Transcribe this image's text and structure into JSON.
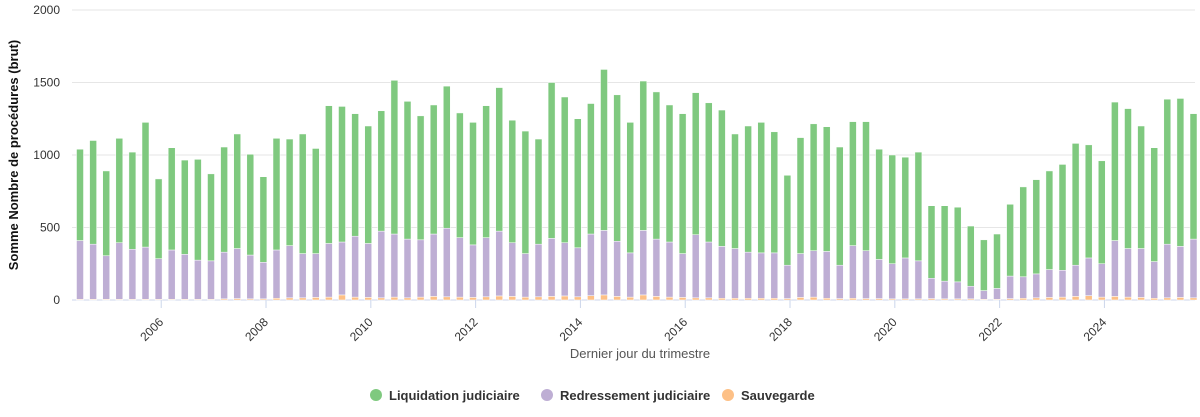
{
  "chart_data": {
    "type": "bar",
    "stacked": true,
    "xlabel": "Dernier jour du trimestre",
    "ylabel": "Somme Nombre de procédures (brut)",
    "ylim": [
      0,
      2000
    ],
    "yticks": [
      "0",
      "500",
      "1000",
      "1500",
      "2000"
    ],
    "xticks": [
      "2006",
      "2008",
      "2010",
      "2012",
      "2014",
      "2016",
      "2018",
      "2020",
      "2022",
      "2024"
    ],
    "grid": true,
    "legend_position": "bottom",
    "first_quarter": "2004-Q3",
    "series": [
      {
        "name": "Liquidation judiciaire",
        "color": "#7fc97f",
        "totals": [
          1040,
          1100,
          890,
          1115,
          1020,
          1225,
          835,
          1050,
          965,
          970,
          870,
          1055,
          1145,
          1005,
          850,
          1115,
          1110,
          1145,
          1045,
          1340,
          1335,
          1285,
          1200,
          1305,
          1515,
          1370,
          1270,
          1345,
          1475,
          1290,
          1225,
          1340,
          1465,
          1240,
          1165,
          1110,
          1500,
          1400,
          1250,
          1355,
          1590,
          1415,
          1225,
          1510,
          1435,
          1345,
          1285,
          1430,
          1360,
          1310,
          1145,
          1200,
          1225,
          1160,
          860,
          1120,
          1215,
          1195,
          1055,
          1230,
          1230,
          1040,
          1000,
          985,
          1020,
          650,
          650,
          640,
          510,
          415,
          455,
          660,
          780,
          830,
          890,
          935,
          1080,
          1070,
          960,
          1365,
          1320,
          1200,
          1050,
          1385,
          1390,
          1285
        ]
      },
      {
        "name": "Redressement judiciaire",
        "color": "#beaed4",
        "values": [
          410,
          385,
          305,
          395,
          350,
          365,
          285,
          345,
          315,
          275,
          270,
          330,
          355,
          310,
          260,
          345,
          375,
          320,
          320,
          390,
          400,
          440,
          390,
          475,
          455,
          420,
          415,
          455,
          495,
          430,
          380,
          430,
          475,
          395,
          320,
          385,
          425,
          395,
          360,
          455,
          480,
          405,
          325,
          480,
          420,
          400,
          320,
          450,
          400,
          370,
          355,
          330,
          325,
          325,
          240,
          320,
          340,
          335,
          240,
          375,
          340,
          280,
          250,
          290,
          270,
          150,
          130,
          125,
          95,
          65,
          80,
          165,
          160,
          180,
          210,
          205,
          240,
          290,
          250,
          410,
          355,
          355,
          265,
          385,
          370,
          420
        ]
      },
      {
        "name": "Sauvegarde",
        "color": "#fdc086",
        "values": [
          5,
          5,
          5,
          5,
          5,
          5,
          5,
          5,
          5,
          5,
          5,
          8,
          10,
          8,
          8,
          12,
          15,
          15,
          18,
          20,
          35,
          20,
          18,
          15,
          20,
          15,
          20,
          25,
          22,
          20,
          18,
          22,
          28,
          25,
          20,
          22,
          25,
          28,
          22,
          30,
          35,
          25,
          20,
          35,
          25,
          20,
          18,
          15,
          15,
          12,
          12,
          12,
          12,
          12,
          10,
          18,
          20,
          12,
          10,
          12,
          10,
          10,
          8,
          8,
          8,
          10,
          8,
          8,
          8,
          5,
          5,
          10,
          12,
          15,
          18,
          20,
          25,
          30,
          20,
          25,
          20,
          18,
          12,
          15,
          18,
          15
        ]
      }
    ]
  }
}
